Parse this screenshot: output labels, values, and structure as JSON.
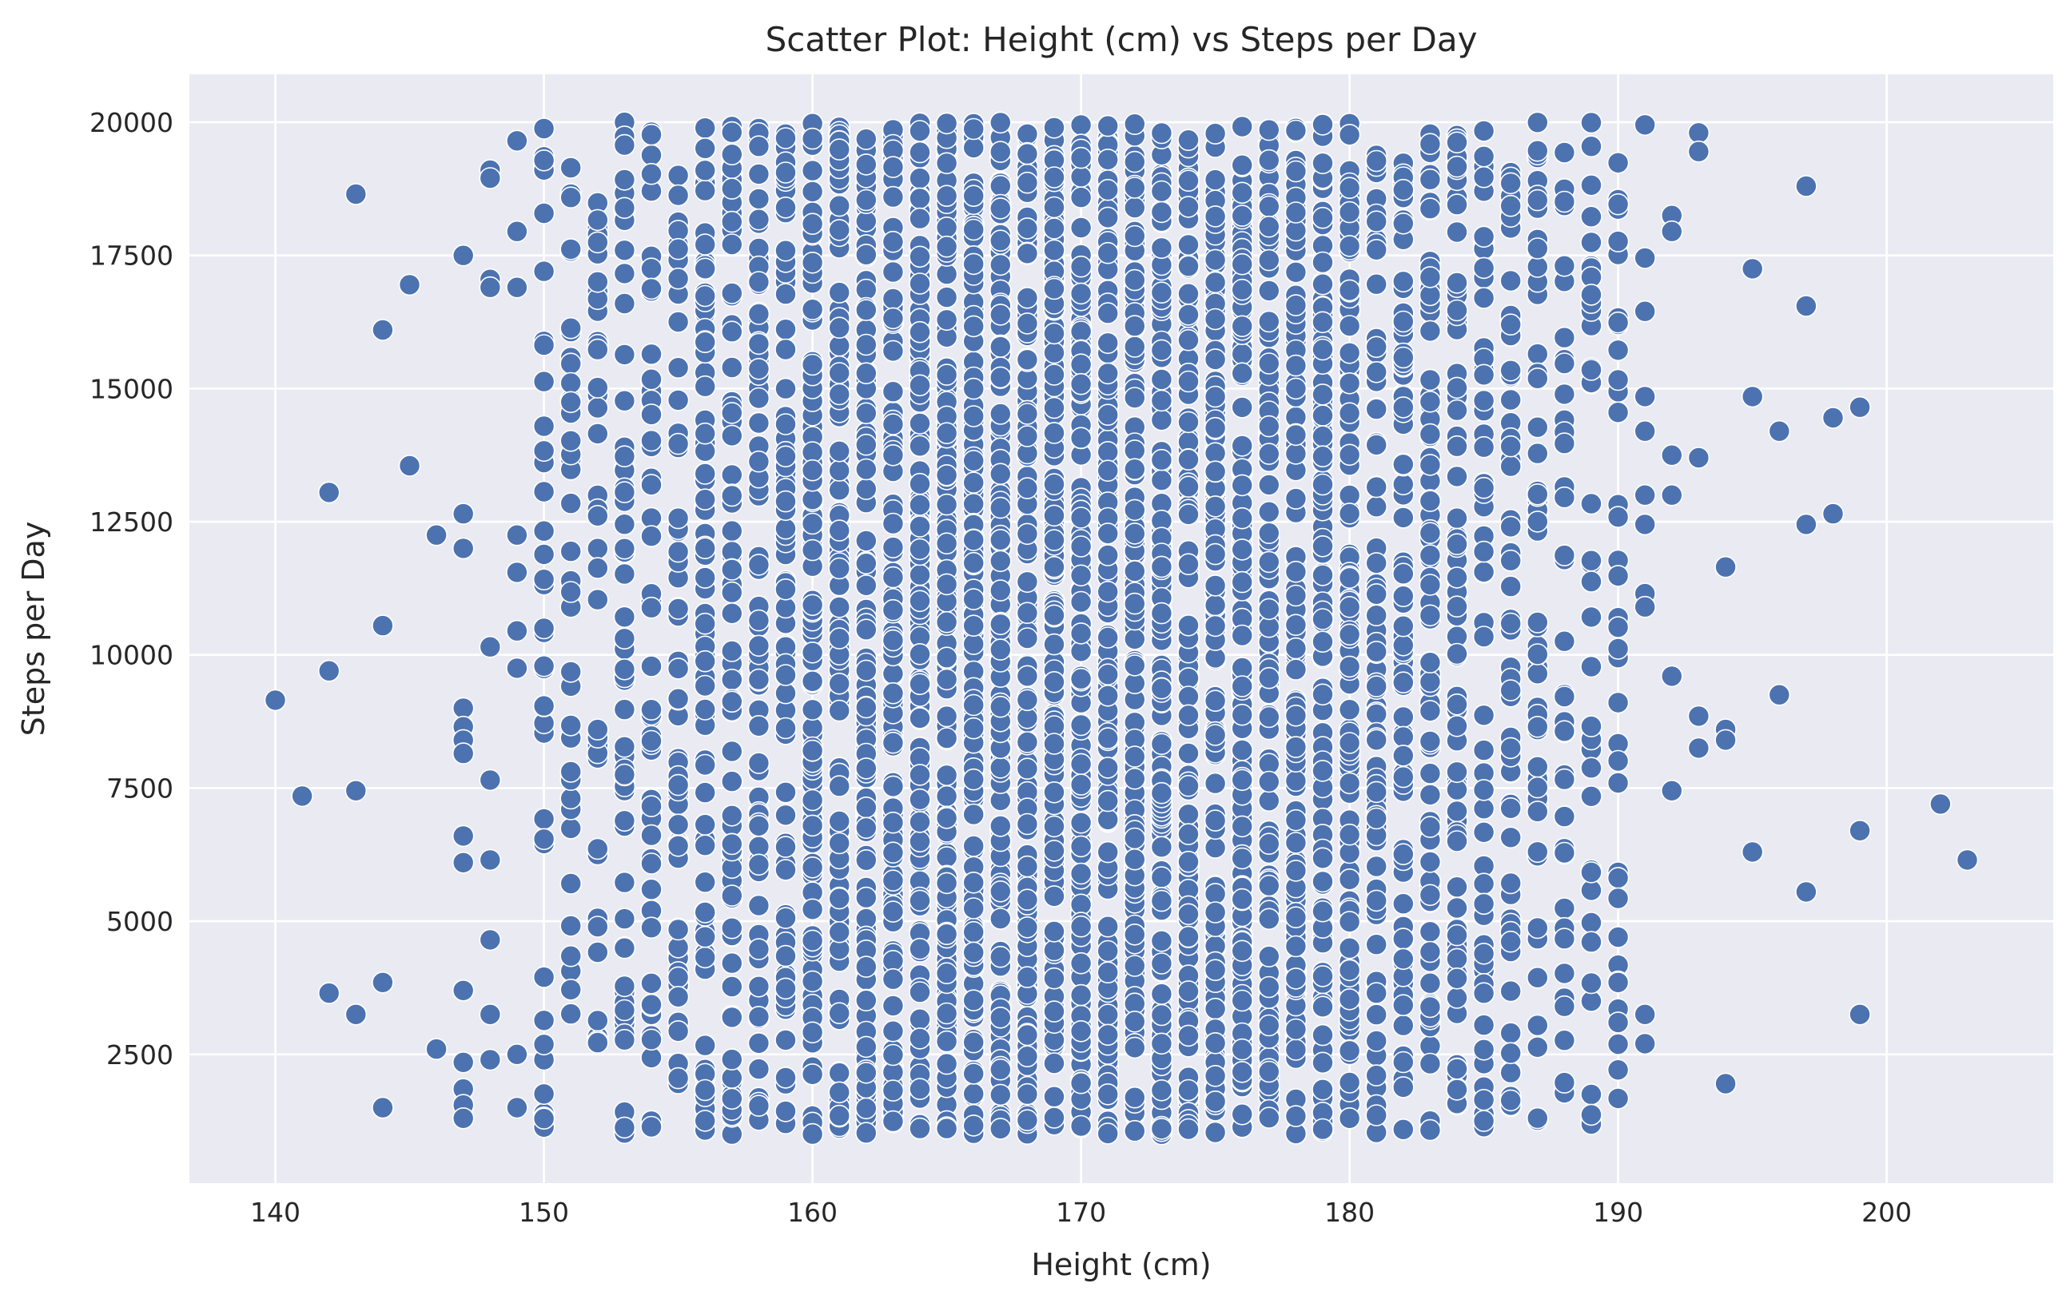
{
  "chart_data": {
    "type": "scatter",
    "title": "Scatter Plot: Height (cm) vs Steps per Day",
    "xlabel": "Height (cm)",
    "ylabel": "Steps per Day",
    "xlim": [
      136.8,
      206.2
    ],
    "ylim": [
      82,
      20900
    ],
    "xticks": [
      140,
      150,
      160,
      170,
      180,
      190,
      200
    ],
    "yticks": [
      2500,
      5000,
      7500,
      10000,
      12500,
      15000,
      17500,
      20000
    ],
    "grid": true,
    "marker_color": "#4c72b0",
    "background_color": "#eaeaf2",
    "points": [
      [
        140,
        9150
      ],
      [
        141,
        7350
      ],
      [
        142,
        13050
      ],
      [
        142,
        9700
      ],
      [
        142,
        3650
      ],
      [
        143,
        18650
      ],
      [
        143,
        7450
      ],
      [
        143,
        3250
      ],
      [
        144,
        16100
      ],
      [
        144,
        10550
      ],
      [
        144,
        3850
      ],
      [
        144,
        1500
      ],
      [
        145,
        16950
      ],
      [
        145,
        13550
      ],
      [
        146,
        12250
      ],
      [
        146,
        2600
      ],
      [
        147,
        17500
      ],
      [
        147,
        12650
      ],
      [
        147,
        12000
      ],
      [
        147,
        9000
      ],
      [
        147,
        8650
      ],
      [
        147,
        8400
      ],
      [
        147,
        8150
      ],
      [
        147,
        6600
      ],
      [
        147,
        6100
      ],
      [
        147,
        3700
      ],
      [
        147,
        2350
      ],
      [
        147,
        1850
      ],
      [
        147,
        1550
      ],
      [
        147,
        1300
      ],
      [
        148,
        19100
      ],
      [
        148,
        18950
      ],
      [
        148,
        17050
      ],
      [
        148,
        16900
      ],
      [
        148,
        10150
      ],
      [
        148,
        7650
      ],
      [
        148,
        6150
      ],
      [
        148,
        4650
      ],
      [
        148,
        3250
      ],
      [
        148,
        2400
      ],
      [
        149,
        19650
      ],
      [
        149,
        17950
      ],
      [
        149,
        16900
      ],
      [
        149,
        12250
      ],
      [
        149,
        11550
      ],
      [
        149,
        10450
      ],
      [
        149,
        9750
      ],
      [
        149,
        2500
      ],
      [
        149,
        1500
      ],
      [
        191,
        19950
      ],
      [
        191,
        17450
      ],
      [
        191,
        16450
      ],
      [
        191,
        14850
      ],
      [
        191,
        14200
      ],
      [
        191,
        13000
      ],
      [
        191,
        12450
      ],
      [
        191,
        11150
      ],
      [
        191,
        10900
      ],
      [
        191,
        3250
      ],
      [
        191,
        2700
      ],
      [
        192,
        18250
      ],
      [
        192,
        17950
      ],
      [
        192,
        13750
      ],
      [
        192,
        13000
      ],
      [
        192,
        9600
      ],
      [
        192,
        7450
      ],
      [
        193,
        19800
      ],
      [
        193,
        19450
      ],
      [
        193,
        13700
      ],
      [
        193,
        8850
      ],
      [
        193,
        8250
      ],
      [
        194,
        11650
      ],
      [
        194,
        8600
      ],
      [
        194,
        8400
      ],
      [
        194,
        1950
      ],
      [
        195,
        17250
      ],
      [
        195,
        14850
      ],
      [
        195,
        6300
      ],
      [
        196,
        14200
      ],
      [
        196,
        9250
      ],
      [
        197,
        18800
      ],
      [
        197,
        16550
      ],
      [
        197,
        12450
      ],
      [
        197,
        5550
      ],
      [
        198,
        14450
      ],
      [
        198,
        12650
      ],
      [
        199,
        14650
      ],
      [
        199,
        6700
      ],
      [
        199,
        3250
      ],
      [
        202,
        7200
      ],
      [
        203,
        6150
      ]
    ],
    "dense_band": {
      "x_range": [
        150,
        190
      ],
      "y_range": [
        1000,
        20000
      ],
      "note": "Hundreds of points at every integer height 150–190 spanning roughly 1000–20000 steps; densest between 160 and 180 cm."
    }
  }
}
